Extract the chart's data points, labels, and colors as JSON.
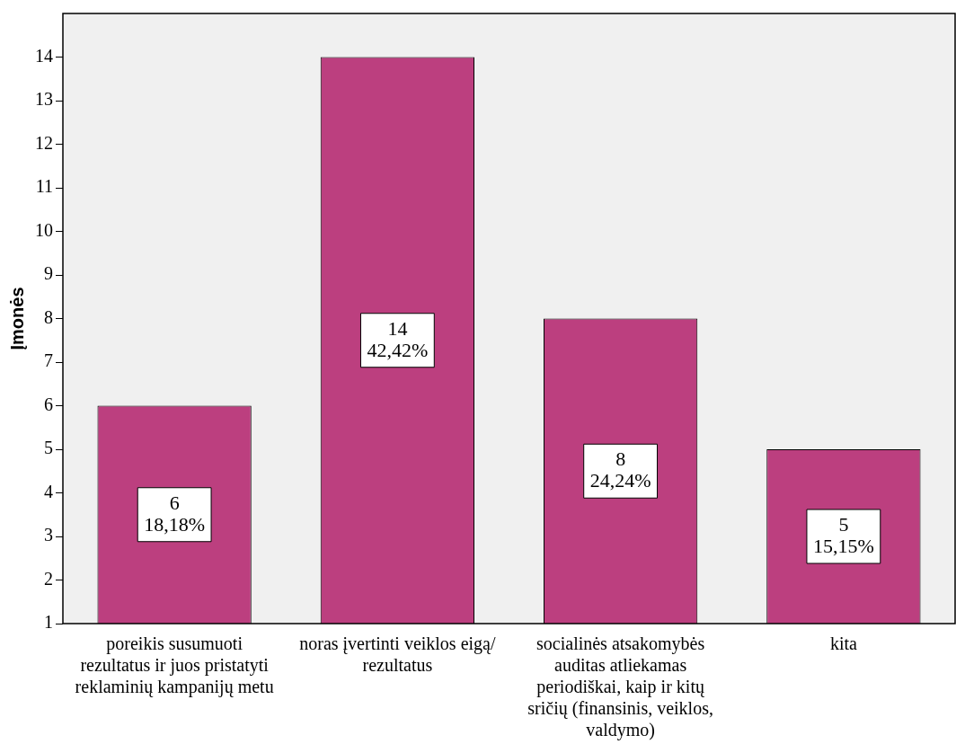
{
  "chart_data": {
    "type": "bar",
    "ylabel": "Įmonės",
    "categories": [
      "poreikis susumuoti rezultatus ir juos pristatyti reklaminių kampanijų metu",
      "noras įvertinti veiklos eigą/ rezultatus",
      "socialinės atsakomybės auditas atliekamas periodiškai, kaip ir kitų sričių (finansinis, veiklos, valdymo)",
      "kita"
    ],
    "values": [
      6,
      14,
      8,
      5
    ],
    "value_labels": [
      "6\n18,18%",
      "14\n42,42%",
      "8\n24,24%",
      "5\n15,15%"
    ],
    "color": "#bc3f7f",
    "ylim": [
      1,
      15
    ],
    "yticks": [
      1,
      2,
      3,
      4,
      5,
      6,
      7,
      8,
      9,
      10,
      11,
      12,
      13,
      14
    ],
    "grid": false,
    "legend": false
  }
}
